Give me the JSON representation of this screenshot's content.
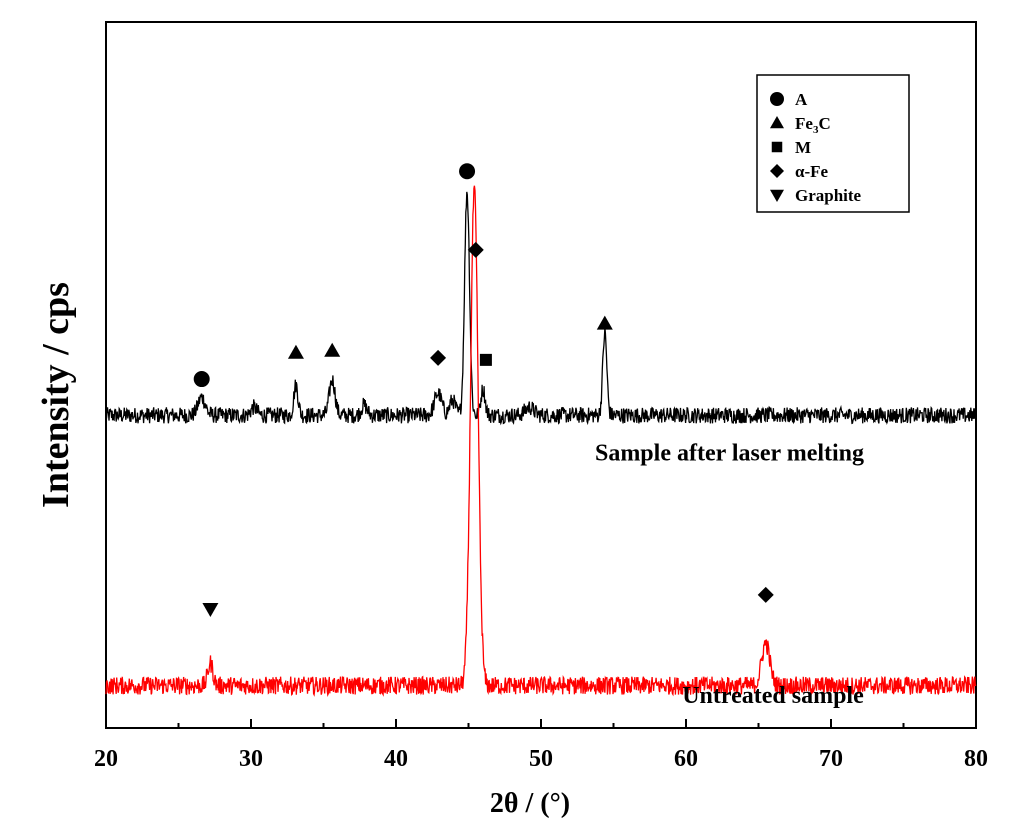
{
  "chart_data": {
    "type": "line",
    "xlabel": "2θ / (°)",
    "ylabel": "Intensity / cps",
    "xlim": [
      20,
      80
    ],
    "xticks": [
      20,
      30,
      40,
      50,
      60,
      70,
      80
    ],
    "grid": false,
    "legend_position": "top-right",
    "series": [
      {
        "name": "Sample after laser melting",
        "color": "#000000",
        "baseline": 310,
        "noise": 8,
        "peaks": [
          {
            "x": 26.6,
            "h": 18,
            "w": 0.25
          },
          {
            "x": 30.2,
            "h": 8,
            "w": 0.2
          },
          {
            "x": 33.1,
            "h": 30,
            "w": 0.15
          },
          {
            "x": 35.6,
            "h": 35,
            "w": 0.2
          },
          {
            "x": 37.8,
            "h": 10,
            "w": 0.2
          },
          {
            "x": 42.9,
            "h": 22,
            "w": 0.25
          },
          {
            "x": 43.9,
            "h": 15,
            "w": 0.2
          },
          {
            "x": 44.9,
            "h": 222,
            "w": 0.17
          },
          {
            "x": 46.0,
            "h": 26,
            "w": 0.15
          },
          {
            "x": 49.2,
            "h": 8,
            "w": 0.3
          },
          {
            "x": 54.4,
            "h": 82,
            "w": 0.14
          }
        ]
      },
      {
        "name": "Untreated sample",
        "color": "#ff0000",
        "baseline": 42,
        "noise": 9,
        "peaks": [
          {
            "x": 27.2,
            "h": 22,
            "w": 0.18
          },
          {
            "x": 45.4,
            "h": 490,
            "w": 0.26
          },
          {
            "x": 65.5,
            "h": 42,
            "w": 0.28
          }
        ]
      }
    ],
    "legend": [
      {
        "marker": "circle",
        "label": "A"
      },
      {
        "marker": "triangle-up",
        "label": "Fe",
        "sub": "3",
        "label_after": "C"
      },
      {
        "marker": "square",
        "label": "M"
      },
      {
        "marker": "diamond",
        "label": "α-Fe"
      },
      {
        "marker": "triangle-down",
        "label": "Graphite"
      }
    ],
    "peak_markers": [
      {
        "x": 26.6,
        "y": 346,
        "marker": "circle"
      },
      {
        "x": 33.1,
        "y": 372,
        "marker": "triangle-up"
      },
      {
        "x": 35.6,
        "y": 374,
        "marker": "triangle-up"
      },
      {
        "x": 42.9,
        "y": 367,
        "marker": "diamond"
      },
      {
        "x": 44.9,
        "y": 552,
        "marker": "circle"
      },
      {
        "x": 45.5,
        "y": 474,
        "marker": "diamond"
      },
      {
        "x": 46.2,
        "y": 365,
        "marker": "square"
      },
      {
        "x": 54.4,
        "y": 401,
        "marker": "triangle-up"
      },
      {
        "x": 27.2,
        "y": 118,
        "marker": "triangle-down"
      },
      {
        "x": 65.5,
        "y": 132,
        "marker": "diamond"
      }
    ],
    "annotations": [
      {
        "text": "Sample after laser melting",
        "x": 63,
        "y": 265
      },
      {
        "text": "Untreated sample",
        "x": 66,
        "y": 25
      }
    ]
  }
}
